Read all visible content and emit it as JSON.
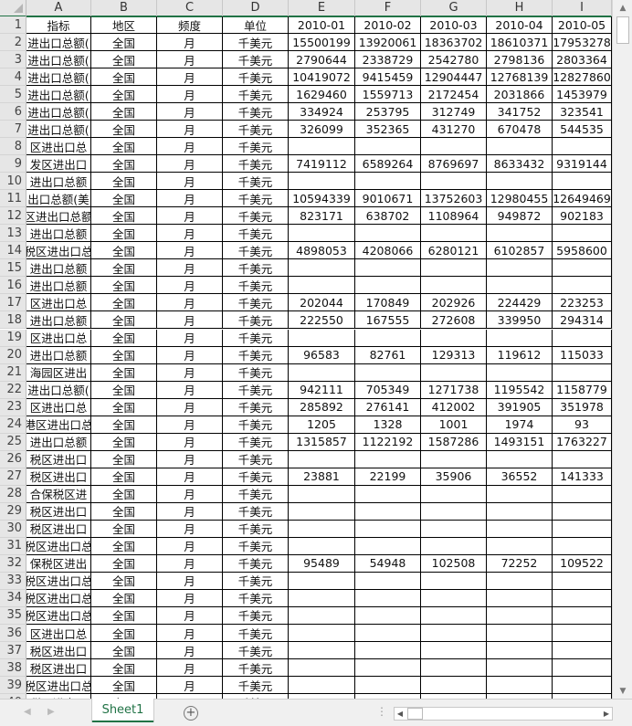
{
  "columns": [
    "A",
    "B",
    "C",
    "D",
    "E",
    "F",
    "G",
    "H",
    "I"
  ],
  "header": [
    "指标",
    "地区",
    "频度",
    "单位",
    "2010-01",
    "2010-02",
    "2010-03",
    "2010-04",
    "2010-05"
  ],
  "rows": [
    [
      "进出口总额(",
      "全国",
      "月",
      "千美元",
      "15500199",
      "13920061",
      "18363702",
      "18610371",
      "17953278"
    ],
    [
      "进出口总额(",
      "全国",
      "月",
      "千美元",
      "2790644",
      "2338729",
      "2542780",
      "2798136",
      "2803364"
    ],
    [
      "进出口总额(",
      "全国",
      "月",
      "千美元",
      "10419072",
      "9415459",
      "12904447",
      "12768139",
      "12827860"
    ],
    [
      "进出口总额(",
      "全国",
      "月",
      "千美元",
      "1629460",
      "1559713",
      "2172454",
      "2031866",
      "1453979"
    ],
    [
      "进出口总额(",
      "全国",
      "月",
      "千美元",
      "334924",
      "253795",
      "312749",
      "341752",
      "323541"
    ],
    [
      "进出口总额(",
      "全国",
      "月",
      "千美元",
      "326099",
      "352365",
      "431270",
      "670478",
      "544535"
    ],
    [
      "区进出口总",
      "全国",
      "月",
      "千美元",
      "",
      "",
      "",
      "",
      ""
    ],
    [
      "发区进出口",
      "全国",
      "月",
      "千美元",
      "7419112",
      "6589264",
      "8769697",
      "8633432",
      "9319144"
    ],
    [
      "进出口总额",
      "全国",
      "月",
      "千美元",
      "",
      "",
      "",
      "",
      ""
    ],
    [
      "出口总额(美",
      "全国",
      "月",
      "千美元",
      "10594339",
      "9010671",
      "13752603",
      "12980455",
      "12649469"
    ],
    [
      "区进出口总额",
      "全国",
      "月",
      "千美元",
      "823171",
      "638702",
      "1108964",
      "949872",
      "902183"
    ],
    [
      "进出口总额",
      "全国",
      "月",
      "千美元",
      "",
      "",
      "",
      "",
      ""
    ],
    [
      "税区进出口总",
      "全国",
      "月",
      "千美元",
      "4898053",
      "4208066",
      "6280121",
      "6102857",
      "5958600"
    ],
    [
      "进出口总额",
      "全国",
      "月",
      "千美元",
      "",
      "",
      "",
      "",
      ""
    ],
    [
      "进出口总额",
      "全国",
      "月",
      "千美元",
      "",
      "",
      "",
      "",
      ""
    ],
    [
      "区进出口总",
      "全国",
      "月",
      "千美元",
      "202044",
      "170849",
      "202926",
      "224429",
      "223253"
    ],
    [
      "进出口总额",
      "全国",
      "月",
      "千美元",
      "222550",
      "167555",
      "272608",
      "339950",
      "294314"
    ],
    [
      "区进出口总",
      "全国",
      "月",
      "千美元",
      "",
      "",
      "",
      "",
      ""
    ],
    [
      "进出口总额",
      "全国",
      "月",
      "千美元",
      "96583",
      "82761",
      "129313",
      "119612",
      "115033"
    ],
    [
      "海园区进出",
      "全国",
      "月",
      "千美元",
      "",
      "",
      "",
      "",
      ""
    ],
    [
      "进出口总额(",
      "全国",
      "月",
      "千美元",
      "942111",
      "705349",
      "1271738",
      "1195542",
      "1158779"
    ],
    [
      "区进出口总",
      "全国",
      "月",
      "千美元",
      "285892",
      "276141",
      "412002",
      "391905",
      "351978"
    ],
    [
      "港区进出口总",
      "全国",
      "月",
      "千美元",
      "1205",
      "1328",
      "1001",
      "1974",
      "93"
    ],
    [
      "进出口总额",
      "全国",
      "月",
      "千美元",
      "1315857",
      "1122192",
      "1587286",
      "1493151",
      "1763227"
    ],
    [
      "税区进出口",
      "全国",
      "月",
      "千美元",
      "",
      "",
      "",
      "",
      ""
    ],
    [
      "税区进出口",
      "全国",
      "月",
      "千美元",
      "23881",
      "22199",
      "35906",
      "36552",
      "141333"
    ],
    [
      "合保税区进",
      "全国",
      "月",
      "千美元",
      "",
      "",
      "",
      "",
      ""
    ],
    [
      "税区进出口",
      "全国",
      "月",
      "千美元",
      "",
      "",
      "",
      "",
      ""
    ],
    [
      "税区进出口",
      "全国",
      "月",
      "千美元",
      "",
      "",
      "",
      "",
      ""
    ],
    [
      "税区进出口总",
      "全国",
      "月",
      "千美元",
      "",
      "",
      "",
      "",
      ""
    ],
    [
      "保税区进出",
      "全国",
      "月",
      "千美元",
      "95489",
      "54948",
      "102508",
      "72252",
      "109522"
    ],
    [
      "税区进出口总",
      "全国",
      "月",
      "千美元",
      "",
      "",
      "",
      "",
      ""
    ],
    [
      "税区进出口总",
      "全国",
      "月",
      "千美元",
      "",
      "",
      "",
      "",
      ""
    ],
    [
      "税区进出口总",
      "全国",
      "月",
      "千美元",
      "",
      "",
      "",
      "",
      ""
    ],
    [
      "区进出口总",
      "全国",
      "月",
      "千美元",
      "",
      "",
      "",
      "",
      ""
    ],
    [
      "税区进出口",
      "全国",
      "月",
      "千美元",
      "",
      "",
      "",
      "",
      ""
    ],
    [
      "税区进出口",
      "全国",
      "月",
      "千美元",
      "",
      "",
      "",
      "",
      ""
    ],
    [
      "税区进出口总",
      "全国",
      "月",
      "千美元",
      "",
      "",
      "",
      "",
      ""
    ],
    [
      "税区进出口",
      "全国",
      "月",
      "千美元",
      "",
      "",
      "",
      "",
      ""
    ]
  ],
  "sheet_tab": "Sheet1",
  "add_sheet_icon": "plus-circle-icon",
  "accent_color": "#217346"
}
